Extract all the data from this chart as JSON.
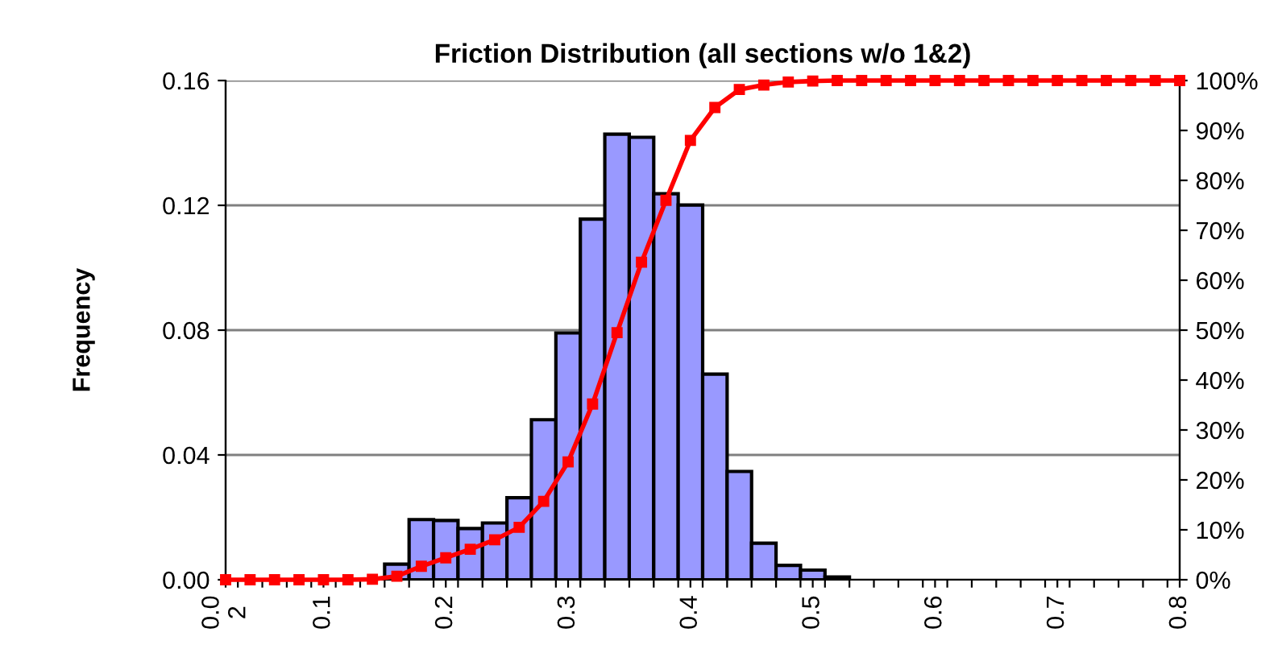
{
  "chart_data": {
    "type": "histogram",
    "title": "Friction Distribution (all sections w/o 1&2)",
    "ylabel": "Frequency",
    "bins": [
      0.13,
      0.15,
      0.17,
      0.19,
      0.21,
      0.23,
      0.25,
      0.27,
      0.29,
      0.31,
      0.33,
      0.35,
      0.37,
      0.39,
      0.41,
      0.43,
      0.45,
      0.47,
      0.49,
      0.51,
      0.53
    ],
    "values": [
      null,
      0.005,
      0.0193,
      0.019,
      0.0164,
      0.0182,
      0.0263,
      0.0513,
      0.0791,
      0.1156,
      0.1428,
      0.1418,
      0.1237,
      0.1201,
      0.0659,
      0.0347,
      0.0117,
      0.0046,
      0.0031,
      0.0009
    ],
    "color": "#9999ff",
    "series": [
      {
        "type": "line",
        "axis": "y2",
        "color": "#ff0000",
        "marker": "square",
        "line_style": "solid",
        "x": [
          0.02,
          0.04,
          0.06,
          0.08,
          0.1,
          0.12,
          0.14,
          0.16,
          0.18,
          0.2,
          0.22,
          0.24,
          0.26,
          0.28,
          0.3,
          0.32,
          0.34,
          0.36,
          0.38,
          0.4,
          0.42,
          0.44,
          0.46,
          0.48,
          0.5,
          0.52,
          0.54,
          0.56,
          0.58,
          0.6,
          0.62,
          0.64,
          0.66,
          0.68,
          0.7,
          0.72,
          0.74,
          0.76,
          0.78,
          0.8
        ],
        "values": [
          0,
          0,
          0,
          0,
          0,
          0,
          0.1,
          0.7,
          2.7,
          4.4,
          6.1,
          8,
          10.5,
          15.7,
          23.6,
          35.2,
          49.5,
          63.6,
          76,
          88,
          94.6,
          98.2,
          99.1,
          99.7,
          99.9,
          100,
          100,
          100,
          100,
          100,
          100,
          100,
          100,
          100,
          100,
          100,
          100,
          100,
          100,
          100
        ]
      }
    ],
    "xlim": [
      0.02,
      0.8
    ],
    "xticks": [
      {
        "value": 0.02,
        "label": "0.0\n2"
      },
      {
        "value": 0.1,
        "label": "0.1"
      },
      {
        "value": 0.2,
        "label": "0.2"
      },
      {
        "value": 0.3,
        "label": "0.3"
      },
      {
        "value": 0.4,
        "label": "0.4"
      },
      {
        "value": 0.5,
        "label": "0.5"
      },
      {
        "value": 0.6,
        "label": "0.6"
      },
      {
        "value": 0.7,
        "label": "0.7"
      },
      {
        "value": 0.8,
        "label": "0.8"
      },
      {
        "value": 0.03,
        "label": null
      },
      {
        "value": 0.05,
        "label": null
      },
      {
        "value": 0.07,
        "label": null
      },
      {
        "value": 0.09,
        "label": null
      },
      {
        "value": 0.11,
        "label": null
      },
      {
        "value": 0.13,
        "label": null
      },
      {
        "value": 0.15,
        "label": null
      },
      {
        "value": 0.17,
        "label": null
      },
      {
        "value": 0.19,
        "label": null
      },
      {
        "value": 0.21,
        "label": null
      },
      {
        "value": 0.23,
        "label": null
      },
      {
        "value": 0.25,
        "label": null
      },
      {
        "value": 0.27,
        "label": null
      },
      {
        "value": 0.29,
        "label": null
      },
      {
        "value": 0.31,
        "label": null
      },
      {
        "value": 0.33,
        "label": null
      },
      {
        "value": 0.35,
        "label": null
      },
      {
        "value": 0.37,
        "label": null
      },
      {
        "value": 0.39,
        "label": null
      },
      {
        "value": 0.41,
        "label": null
      },
      {
        "value": 0.43,
        "label": null
      },
      {
        "value": 0.45,
        "label": null
      },
      {
        "value": 0.47,
        "label": null
      },
      {
        "value": 0.49,
        "label": null
      },
      {
        "value": 0.51,
        "label": null
      },
      {
        "value": 0.53,
        "label": null
      },
      {
        "value": 0.55,
        "label": null
      },
      {
        "value": 0.57,
        "label": null
      },
      {
        "value": 0.59,
        "label": null
      },
      {
        "value": 0.61,
        "label": null
      },
      {
        "value": 0.63,
        "label": null
      },
      {
        "value": 0.65,
        "label": null
      },
      {
        "value": 0.67,
        "label": null
      },
      {
        "value": 0.69,
        "label": null
      },
      {
        "value": 0.71,
        "label": null
      },
      {
        "value": 0.73,
        "label": null
      },
      {
        "value": 0.75,
        "label": null
      },
      {
        "value": 0.77,
        "label": null
      },
      {
        "value": 0.79,
        "label": null
      }
    ],
    "ylim": [
      0,
      0.16
    ],
    "yticks": [
      {
        "value": 0,
        "label": "0.00"
      },
      {
        "value": 0.04,
        "label": "0.04"
      },
      {
        "value": 0.08,
        "label": "0.08"
      },
      {
        "value": 0.12,
        "label": "0.12"
      },
      {
        "value": 0.16,
        "label": "0.16"
      }
    ],
    "y2lim": [
      0,
      100
    ],
    "y2ticks": [
      {
        "value": 0,
        "label": "0%"
      },
      {
        "value": 10,
        "label": "10%"
      },
      {
        "value": 20,
        "label": "20%"
      },
      {
        "value": 30,
        "label": "30%"
      },
      {
        "value": 40,
        "label": "40%"
      },
      {
        "value": 50,
        "label": "50%"
      },
      {
        "value": 60,
        "label": "60%"
      },
      {
        "value": 70,
        "label": "70%"
      },
      {
        "value": 80,
        "label": "80%"
      },
      {
        "value": 90,
        "label": "90%"
      },
      {
        "value": 100,
        "label": "100%"
      }
    ],
    "grid": "y"
  }
}
